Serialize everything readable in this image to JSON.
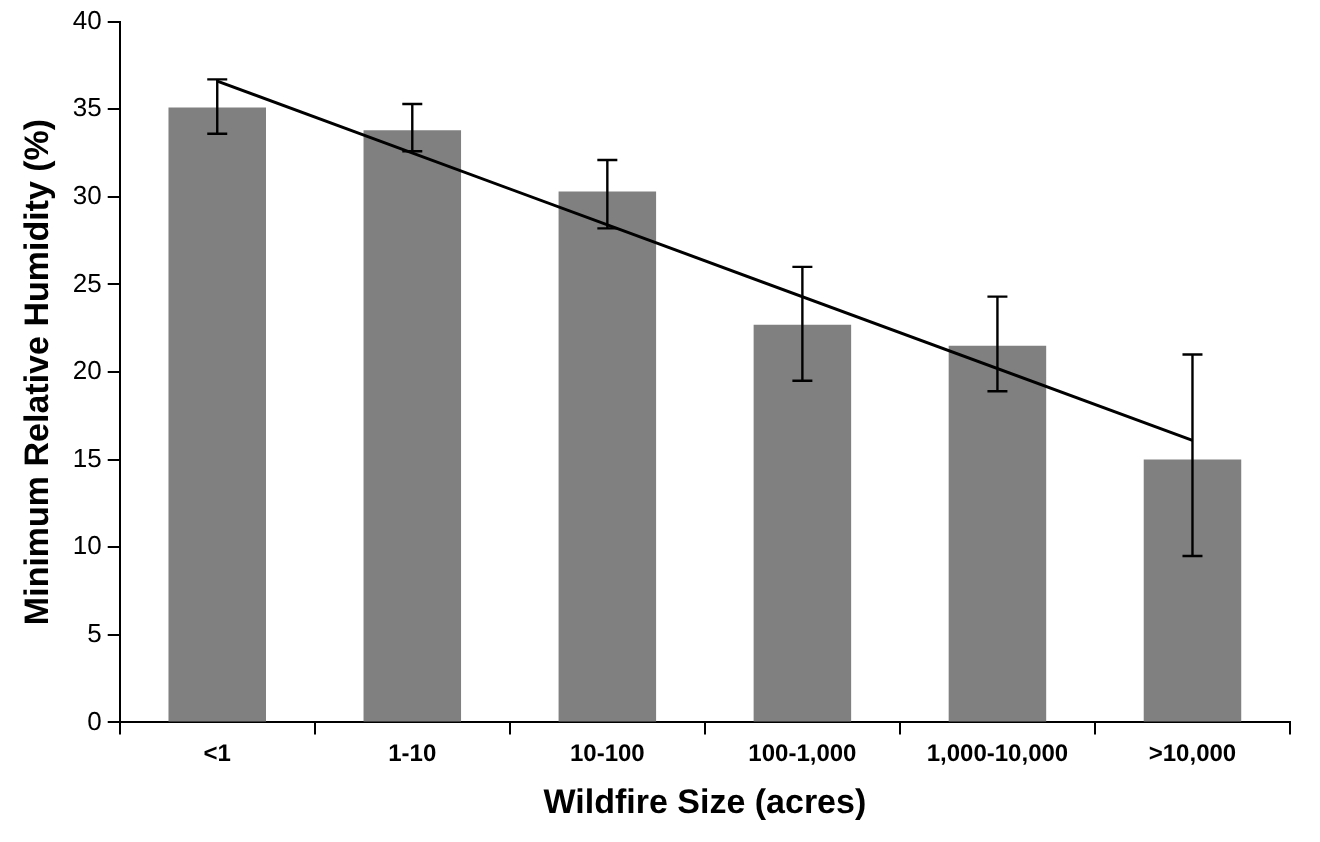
{
  "chart_data": {
    "type": "bar",
    "xlabel": "Wildfire Size (acres)",
    "ylabel": "Minimum Relative Humidity (%)",
    "categories": [
      "<1",
      "1-10",
      "10-100",
      "100-1,000",
      "1,000-10,000",
      ">10,000"
    ],
    "ylim": [
      0,
      40
    ],
    "yticks": [
      0,
      5,
      10,
      15,
      20,
      25,
      30,
      35,
      40
    ],
    "grid": false,
    "legend": false,
    "series": [
      {
        "color": "#808080",
        "values": [
          35.1,
          33.8,
          30.3,
          22.7,
          21.5,
          15.0
        ],
        "errors": [
          [
            33.6,
            36.7
          ],
          [
            32.6,
            35.3
          ],
          [
            28.2,
            32.1
          ],
          [
            19.5,
            26.0
          ],
          [
            18.9,
            24.3
          ],
          [
            9.5,
            21.0
          ]
        ]
      },
      {
        "type": "line",
        "color": "#000000",
        "x": [
          "<1",
          ">10,000"
        ],
        "values": [
          36.6,
          16.1
        ],
        "marker": "none"
      }
    ]
  }
}
